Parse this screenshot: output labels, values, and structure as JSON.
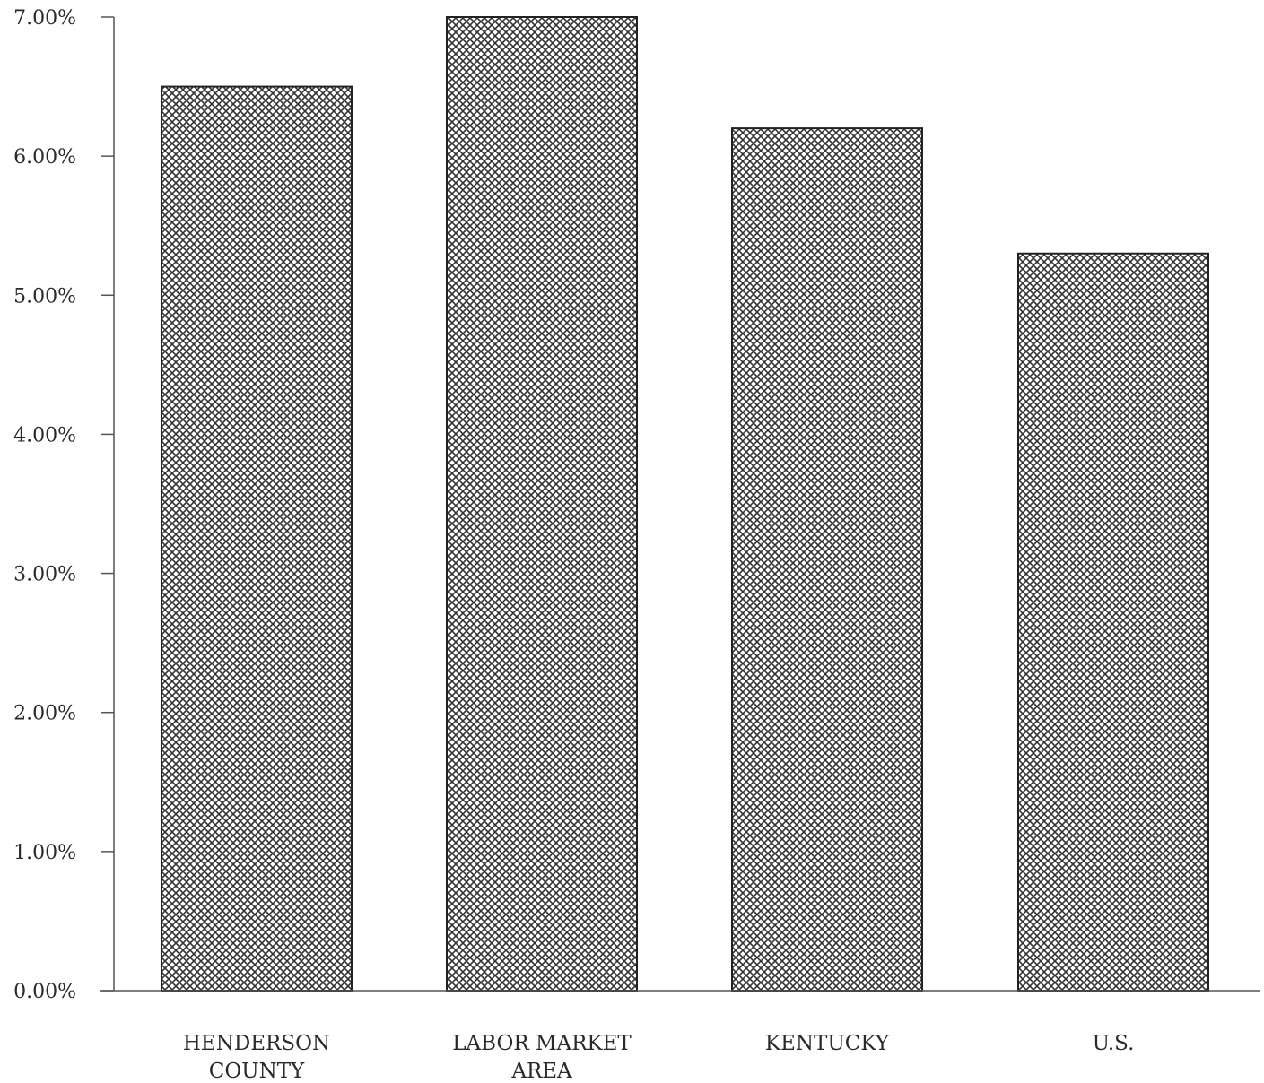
{
  "chart_data": {
    "type": "bar",
    "title": "",
    "xlabel": "",
    "ylabel": "",
    "categories": [
      [
        "HENDERSON",
        "COUNTY"
      ],
      [
        "LABOR MARKET",
        "AREA"
      ],
      [
        "KENTUCKY"
      ],
      [
        "U.S."
      ]
    ],
    "values": [
      6.5,
      7.0,
      6.2,
      5.3
    ],
    "ylim": [
      0,
      7
    ],
    "y_ticks": [
      "0.00%",
      "1.00%",
      "2.00%",
      "3.00%",
      "4.00%",
      "5.00%",
      "6.00%",
      "7.00%"
    ],
    "grid": false,
    "legend": "none",
    "bar_fill": "crosshatch",
    "colors": {
      "bar_fill": "#ffffff",
      "hatch": "#333333",
      "axis": "#555555"
    }
  }
}
